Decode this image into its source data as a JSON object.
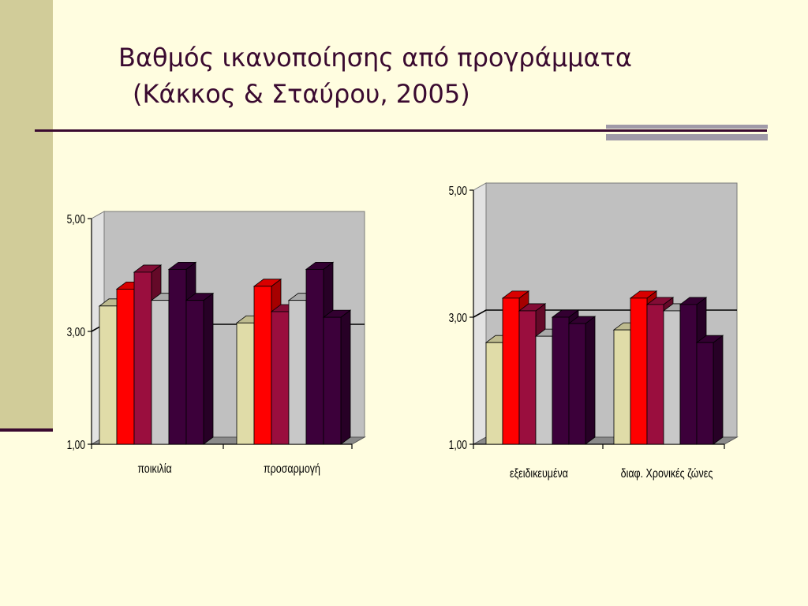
{
  "slide": {
    "title_line1": "Βαθμός ικανοποίησης από προγράμματα",
    "title_line2": "(Κάκκος & Σταύρου, 2005)"
  },
  "colors": {
    "background": "#fffde0",
    "plot_area": "#c0c0c0",
    "series": [
      "#e0dca8",
      "#ff0000",
      "#9a0e3e",
      "#c8c8c8",
      "#3c003a",
      "#3c003a"
    ]
  },
  "chart_data": [
    {
      "type": "bar",
      "categories": [
        "ποικιλία",
        "προσαρμογή"
      ],
      "ylim": [
        1.0,
        5.0
      ],
      "yticks": [
        "1,00",
        "3,00",
        "5,00"
      ],
      "series": [
        {
          "values": [
            3.45,
            3.15
          ]
        },
        {
          "values": [
            3.75,
            3.8
          ]
        },
        {
          "values": [
            4.05,
            3.35
          ]
        },
        {
          "values": [
            3.55,
            3.55
          ]
        },
        {
          "values": [
            4.1,
            4.1
          ]
        },
        {
          "values": [
            3.55,
            3.25
          ]
        }
      ]
    },
    {
      "type": "bar",
      "categories": [
        "εξειδικευμένα",
        "διαφ. Χρονικές ζώνες"
      ],
      "ylim": [
        1.0,
        5.0
      ],
      "yticks": [
        "1,00",
        "3,00",
        "5,00"
      ],
      "series": [
        {
          "values": [
            2.6,
            2.8
          ]
        },
        {
          "values": [
            3.3,
            3.3
          ]
        },
        {
          "values": [
            3.1,
            3.2
          ]
        },
        {
          "values": [
            2.7,
            3.1
          ]
        },
        {
          "values": [
            3.0,
            3.2
          ]
        },
        {
          "values": [
            2.9,
            2.6
          ]
        }
      ]
    }
  ]
}
